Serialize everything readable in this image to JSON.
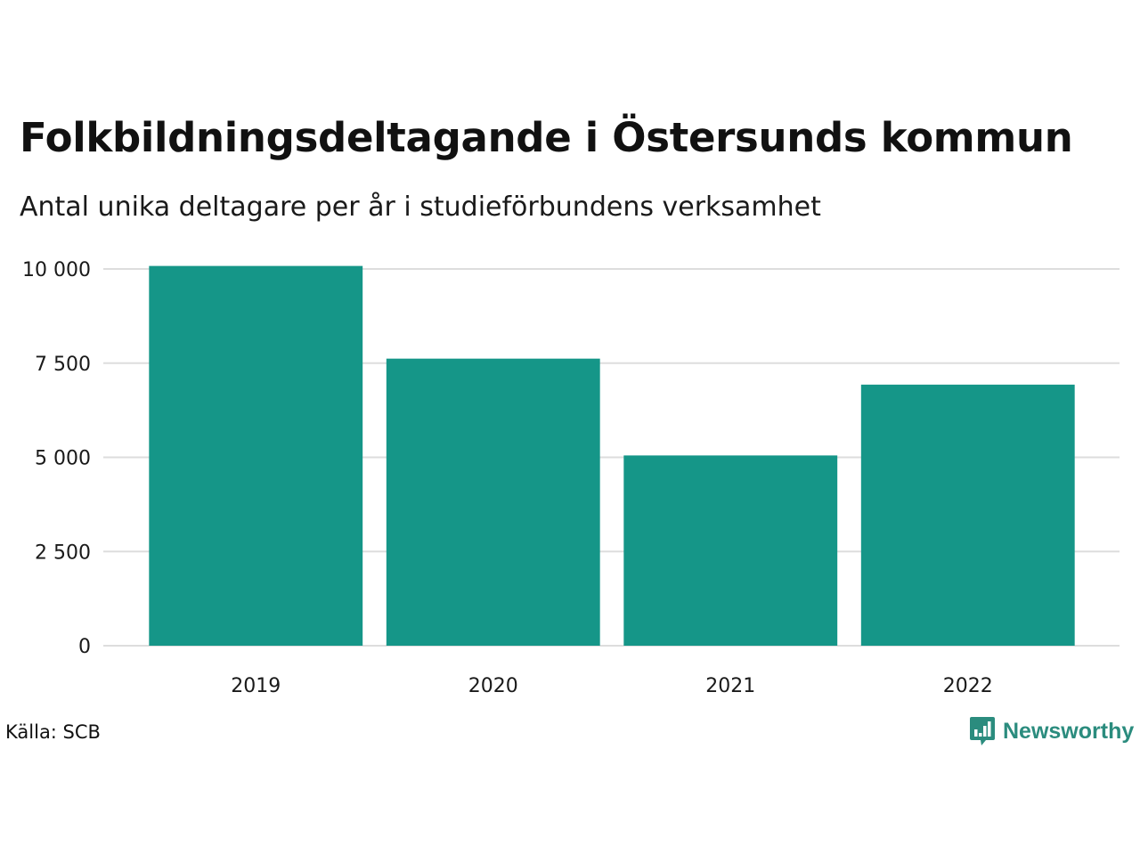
{
  "title": "Folkbildningsdeltagande i Östersunds kommun",
  "subtitle": "Antal unika deltagare per år i studieförbundens verksamhet",
  "source": "Källa: SCB",
  "brand": "Newsworthy",
  "colors": {
    "bar": "#159688",
    "grid": "#dddddd",
    "brand": "#2b8c7e"
  },
  "chart_data": {
    "type": "bar",
    "categories": [
      "2019",
      "2020",
      "2021",
      "2022"
    ],
    "values": [
      10080,
      7620,
      5050,
      6930
    ],
    "ylim": [
      0,
      10000
    ],
    "yticks": [
      0,
      2500,
      5000,
      7500,
      10000
    ],
    "ytick_labels": [
      "0",
      "2 500",
      "5 000",
      "7 500",
      "10 000"
    ],
    "grid": true,
    "xlabel": "",
    "ylabel": ""
  }
}
